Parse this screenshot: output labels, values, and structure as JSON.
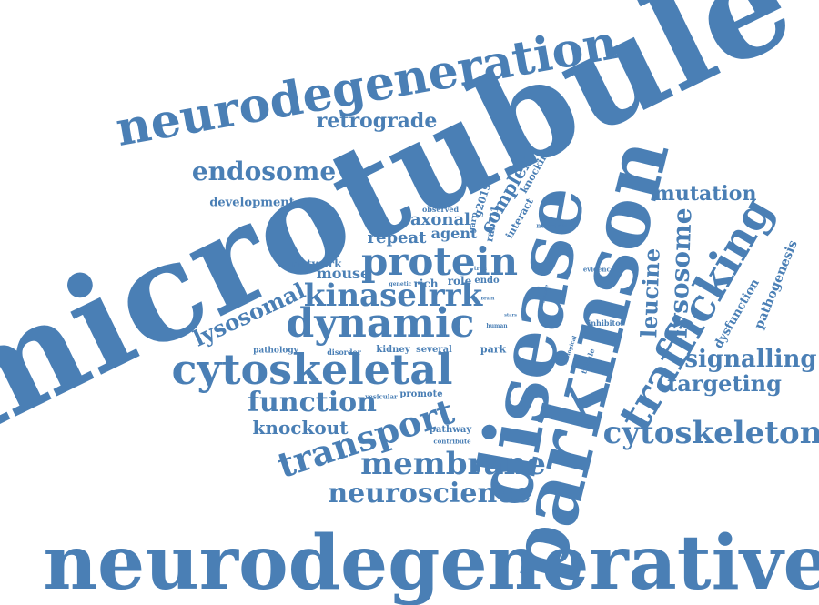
{
  "color": "#4a7fb5",
  "words": [
    {
      "id": "microtubule",
      "text": "microtubule"
    },
    {
      "id": "neurodegenerative",
      "text": "neurodegenerative"
    },
    {
      "id": "parkinson",
      "text": "parkinson"
    },
    {
      "id": "disease",
      "text": "disease"
    },
    {
      "id": "neurodegeneration",
      "text": "neurodegeneration"
    },
    {
      "id": "trafficking",
      "text": "trafficking"
    },
    {
      "id": "cytoskeletal",
      "text": "cytoskeletal"
    },
    {
      "id": "dynamic",
      "text": "dynamic"
    },
    {
      "id": "protein",
      "text": "protein"
    },
    {
      "id": "kinaselrrk",
      "text": "kinaselrrk"
    },
    {
      "id": "cytoskeleton",
      "text": "cytoskeleton"
    },
    {
      "id": "transport",
      "text": "transport"
    },
    {
      "id": "membrane",
      "text": "membrane"
    },
    {
      "id": "neuroscience",
      "text": "neuroscience"
    },
    {
      "id": "function",
      "text": "function"
    },
    {
      "id": "endosome",
      "text": "endosome"
    },
    {
      "id": "retrograde",
      "text": "retrograde"
    },
    {
      "id": "mutation",
      "text": "mutation"
    },
    {
      "id": "lysosome",
      "text": "lysosome"
    },
    {
      "id": "leucine",
      "text": "leucine"
    },
    {
      "id": "signalling",
      "text": "signalling"
    },
    {
      "id": "targeting",
      "text": "targeting"
    },
    {
      "id": "lysosomal",
      "text": "lysosomal"
    },
    {
      "id": "knockout",
      "text": "knockout"
    },
    {
      "id": "complex",
      "text": "complex"
    },
    {
      "id": "axonal",
      "text": "axonal"
    },
    {
      "id": "repeat",
      "text": "repeat"
    },
    {
      "id": "agent",
      "text": "agent"
    },
    {
      "id": "mouse",
      "text": "mouse"
    },
    {
      "id": "network",
      "text": "network"
    },
    {
      "id": "development",
      "text": "development"
    },
    {
      "id": "pathogenesis",
      "text": "pathogenesis"
    },
    {
      "id": "dysfunction",
      "text": "dysfunction"
    },
    {
      "id": "g2019s",
      "text": "g2019s"
    },
    {
      "id": "rab7l1",
      "text": "rab7l1"
    },
    {
      "id": "interact",
      "text": "interact"
    },
    {
      "id": "knockin",
      "text": "knockin"
    },
    {
      "id": "role",
      "text": "role"
    },
    {
      "id": "endo",
      "text": "endo"
    },
    {
      "id": "rich",
      "text": "rich"
    },
    {
      "id": "genetic",
      "text": "genetic"
    },
    {
      "id": "tran",
      "text": "tran"
    },
    {
      "id": "observed",
      "text": "observed"
    },
    {
      "id": "garp",
      "text": "garp"
    },
    {
      "id": "neuronal",
      "text": "neuronal"
    },
    {
      "id": "evidence",
      "text": "evidence"
    },
    {
      "id": "inhibitor",
      "text": "inhibitor"
    },
    {
      "id": "pathology",
      "text": "pathology"
    },
    {
      "id": "disorder",
      "text": "disorder"
    },
    {
      "id": "kidney",
      "text": "kidney"
    },
    {
      "id": "several",
      "text": "several"
    },
    {
      "id": "park",
      "text": "park"
    },
    {
      "id": "human",
      "text": "human"
    },
    {
      "id": "vesicular",
      "text": "vesicular"
    },
    {
      "id": "promote",
      "text": "promote"
    },
    {
      "id": "pathway",
      "text": "pathway"
    },
    {
      "id": "contribute",
      "text": "contribute"
    },
    {
      "id": "biological",
      "text": "biological"
    },
    {
      "id": "tubule",
      "text": "tubule"
    },
    {
      "id": "change",
      "text": "change"
    },
    {
      "id": "stars",
      "text": "stars"
    },
    {
      "id": "brain",
      "text": "brain"
    }
  ]
}
